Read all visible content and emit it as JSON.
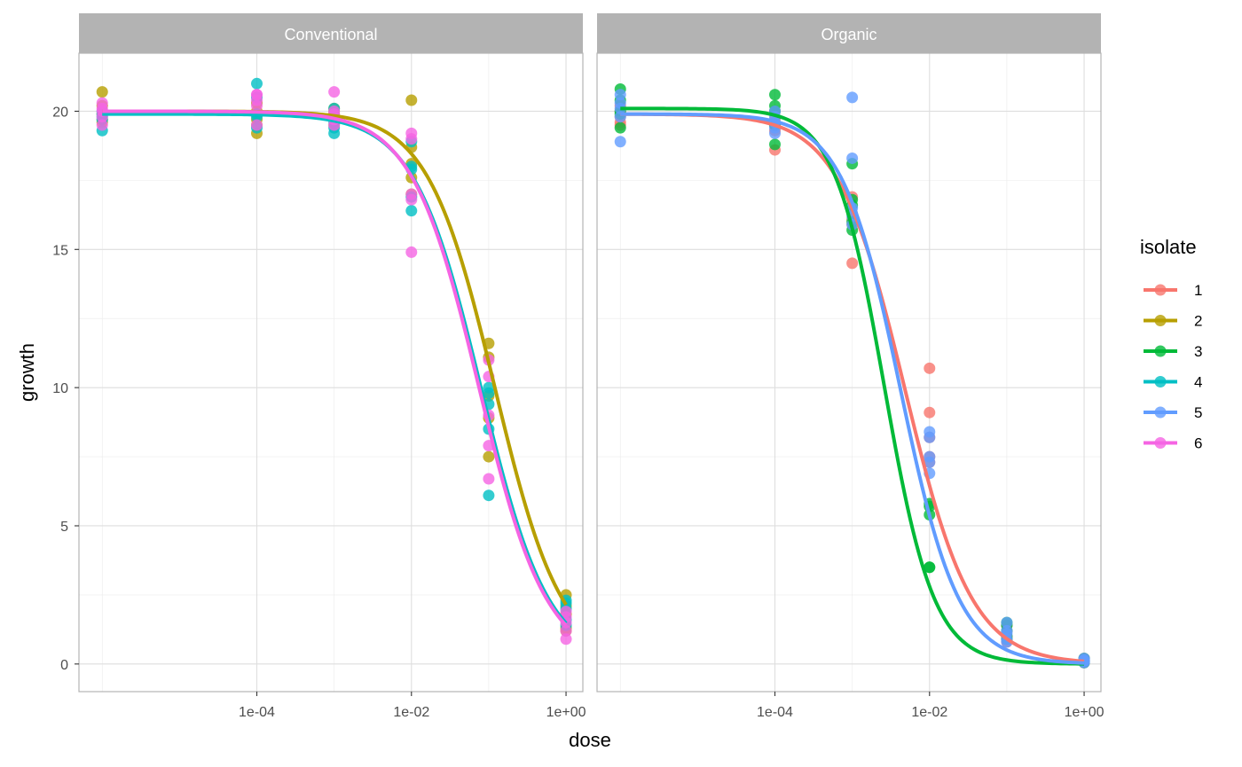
{
  "chart_data": {
    "type": "scatter",
    "facets": [
      "Conventional",
      "Organic"
    ],
    "xlabel": "dose",
    "ylabel": "growth",
    "x_scale": "log10",
    "x_ticks": [
      {
        "value": 0.0001,
        "label": "1e-04"
      },
      {
        "value": 0.01,
        "label": "1e-02"
      },
      {
        "value": 1,
        "label": "1e+00"
      }
    ],
    "xlim": [
      5e-07,
      1.65
    ],
    "y_ticks": [
      0,
      5,
      10,
      15,
      20
    ],
    "ylim": [
      -1.0,
      22.1
    ],
    "grid": true,
    "legend": {
      "title": "isolate",
      "position": "right",
      "items": [
        {
          "label": "1",
          "color": "#F8766D"
        },
        {
          "label": "2",
          "color": "#B79F00"
        },
        {
          "label": "3",
          "color": "#00BA38"
        },
        {
          "label": "4",
          "color": "#00BFC4"
        },
        {
          "label": "5",
          "color": "#619CFF"
        },
        {
          "label": "6",
          "color": "#F564E3"
        }
      ]
    },
    "curve_parameters": [
      {
        "facet": "Conventional",
        "isolate": "2",
        "top": 20.0,
        "ec50": 0.12,
        "slope": 1.0
      },
      {
        "facet": "Conventional",
        "isolate": "4",
        "top": 19.9,
        "ec50": 0.08,
        "slope": 1.0
      },
      {
        "facet": "Conventional",
        "isolate": "6",
        "top": 20.0,
        "ec50": 0.075,
        "slope": 1.0
      },
      {
        "facet": "Organic",
        "isolate": "1",
        "top": 19.9,
        "ec50": 0.0048,
        "slope": 1.0
      },
      {
        "facet": "Organic",
        "isolate": "3",
        "top": 20.1,
        "ec50": 0.0026,
        "slope": 1.35
      },
      {
        "facet": "Organic",
        "isolate": "5",
        "top": 19.9,
        "ec50": 0.0042,
        "slope": 1.15
      }
    ],
    "points": [
      {
        "facet": "Conventional",
        "isolate": "2",
        "dose": 1e-06,
        "growth": [
          20.7,
          20.2,
          19.9,
          19.7,
          19.6
        ]
      },
      {
        "facet": "Conventional",
        "isolate": "4",
        "dose": 1e-06,
        "growth": [
          19.3,
          19.7,
          19.8,
          19.9,
          20.0
        ]
      },
      {
        "facet": "Conventional",
        "isolate": "6",
        "dose": 1e-06,
        "growth": [
          19.5,
          20.3,
          20.0,
          19.8,
          20.1
        ]
      },
      {
        "facet": "Conventional",
        "isolate": "2",
        "dose": 0.0001,
        "growth": [
          19.2,
          20.0,
          19.7,
          20.3,
          19.5
        ]
      },
      {
        "facet": "Conventional",
        "isolate": "4",
        "dose": 0.0001,
        "growth": [
          21.0,
          19.9,
          19.4,
          20.5,
          19.8
        ]
      },
      {
        "facet": "Conventional",
        "isolate": "6",
        "dose": 0.0001,
        "growth": [
          20.6,
          20.4,
          19.5,
          20.2,
          20.6
        ]
      },
      {
        "facet": "Conventional",
        "isolate": "2",
        "dose": 0.001,
        "growth": [
          20.1,
          19.7,
          19.9,
          19.5,
          20.0
        ]
      },
      {
        "facet": "Conventional",
        "isolate": "4",
        "dose": 0.001,
        "growth": [
          19.2,
          20.1,
          19.6,
          19.8,
          19.4
        ]
      },
      {
        "facet": "Conventional",
        "isolate": "6",
        "dose": 0.001,
        "growth": [
          20.7,
          19.9,
          19.5,
          19.7,
          20.0
        ]
      },
      {
        "facet": "Conventional",
        "isolate": "2",
        "dose": 0.01,
        "growth": [
          20.4,
          18.7,
          17.6,
          17.0,
          18.1
        ]
      },
      {
        "facet": "Conventional",
        "isolate": "4",
        "dose": 0.01,
        "growth": [
          18.9,
          18.0,
          16.4,
          17.9,
          16.9
        ]
      },
      {
        "facet": "Conventional",
        "isolate": "6",
        "dose": 0.01,
        "growth": [
          19.2,
          19.0,
          16.8,
          14.9,
          17.0
        ]
      },
      {
        "facet": "Conventional",
        "isolate": "2",
        "dose": 0.1,
        "growth": [
          11.6,
          11.1,
          9.7,
          8.9,
          7.5
        ]
      },
      {
        "facet": "Conventional",
        "isolate": "4",
        "dose": 0.1,
        "growth": [
          10.0,
          9.4,
          8.5,
          6.1,
          9.8
        ]
      },
      {
        "facet": "Conventional",
        "isolate": "6",
        "dose": 0.1,
        "growth": [
          11.0,
          10.4,
          7.9,
          6.7,
          9.0
        ]
      },
      {
        "facet": "Conventional",
        "isolate": "2",
        "dose": 1,
        "growth": [
          2.5,
          2.1,
          1.8,
          1.3,
          1.2
        ]
      },
      {
        "facet": "Conventional",
        "isolate": "4",
        "dose": 1,
        "growth": [
          2.3,
          2.0,
          1.6,
          1.4,
          2.2
        ]
      },
      {
        "facet": "Conventional",
        "isolate": "6",
        "dose": 1,
        "growth": [
          0.9,
          1.5,
          1.7,
          1.2,
          1.9
        ]
      },
      {
        "facet": "Organic",
        "isolate": "1",
        "dose": 1e-06,
        "growth": [
          20.0,
          19.6,
          19.8,
          20.2,
          19.5
        ]
      },
      {
        "facet": "Organic",
        "isolate": "3",
        "dose": 1e-06,
        "growth": [
          20.8,
          20.4,
          19.9,
          19.4,
          20.0
        ]
      },
      {
        "facet": "Organic",
        "isolate": "5",
        "dose": 1e-06,
        "growth": [
          20.6,
          18.9,
          19.8,
          20.3,
          20.1
        ]
      },
      {
        "facet": "Organic",
        "isolate": "1",
        "dose": 0.0001,
        "growth": [
          18.6,
          19.3,
          19.7,
          20.0,
          19.5
        ]
      },
      {
        "facet": "Organic",
        "isolate": "3",
        "dose": 0.0001,
        "growth": [
          20.6,
          20.2,
          18.8,
          19.5,
          20.0
        ]
      },
      {
        "facet": "Organic",
        "isolate": "5",
        "dose": 0.0001,
        "growth": [
          19.8,
          19.2,
          20.0,
          19.6,
          19.4
        ]
      },
      {
        "facet": "Organic",
        "isolate": "1",
        "dose": 0.001,
        "growth": [
          14.5,
          16.1,
          16.9,
          16.3,
          15.9
        ]
      },
      {
        "facet": "Organic",
        "isolate": "3",
        "dose": 0.001,
        "growth": [
          18.1,
          15.7,
          16.0,
          16.6,
          16.8
        ]
      },
      {
        "facet": "Organic",
        "isolate": "5",
        "dose": 0.001,
        "growth": [
          20.5,
          18.3,
          16.2,
          15.9,
          16.5
        ]
      },
      {
        "facet": "Organic",
        "isolate": "1",
        "dose": 0.01,
        "growth": [
          10.7,
          9.1,
          7.5,
          7.3,
          8.2
        ]
      },
      {
        "facet": "Organic",
        "isolate": "3",
        "dose": 0.01,
        "growth": [
          5.8,
          5.4,
          3.5,
          3.5,
          5.7
        ]
      },
      {
        "facet": "Organic",
        "isolate": "5",
        "dose": 0.01,
        "growth": [
          8.4,
          8.2,
          7.5,
          6.9,
          7.3
        ]
      },
      {
        "facet": "Organic",
        "isolate": "1",
        "dose": 0.1,
        "growth": [
          1.4,
          1.0,
          0.9,
          1.2,
          0.8
        ]
      },
      {
        "facet": "Organic",
        "isolate": "3",
        "dose": 0.1,
        "growth": [
          1.2,
          0.9,
          1.4,
          1.0,
          1.5
        ]
      },
      {
        "facet": "Organic",
        "isolate": "5",
        "dose": 0.1,
        "growth": [
          1.5,
          1.2,
          0.8,
          0.9,
          1.1
        ]
      },
      {
        "facet": "Organic",
        "isolate": "1",
        "dose": 1,
        "growth": [
          0.2,
          0.1,
          0.15,
          0.05,
          0.1
        ]
      },
      {
        "facet": "Organic",
        "isolate": "3",
        "dose": 1,
        "growth": [
          0.1,
          0.2,
          0.05,
          0.1,
          0.15
        ]
      },
      {
        "facet": "Organic",
        "isolate": "5",
        "dose": 1,
        "growth": [
          0.2,
          0.1,
          0.15,
          0.05,
          0.1
        ]
      }
    ]
  }
}
